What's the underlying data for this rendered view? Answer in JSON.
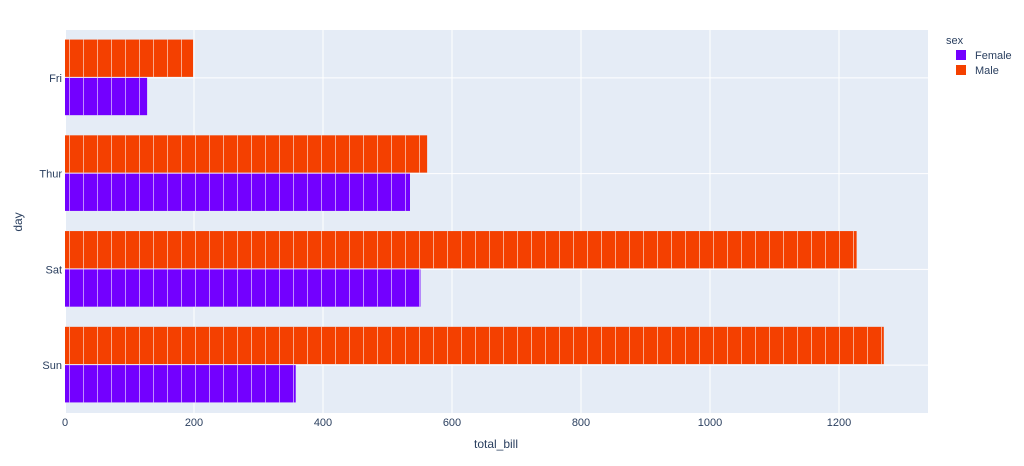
{
  "chart_data": {
    "type": "bar",
    "orientation": "horizontal",
    "barmode": "group",
    "categories": [
      "Fri",
      "Thur",
      "Sat",
      "Sun"
    ],
    "series": [
      {
        "name": "Female",
        "color": "#7300FF",
        "values": [
          127.31,
          534.89,
          551.05,
          357.7
        ]
      },
      {
        "name": "Male",
        "color": "#F44000",
        "values": [
          198.57,
          561.44,
          1227.35,
          1269.46
        ]
      }
    ],
    "xlabel": "total_bill",
    "ylabel": "day",
    "xlim": [
      0,
      1338
    ],
    "xticks": [
      0,
      200,
      400,
      600,
      800,
      1000,
      1200
    ],
    "legend_title": "sex",
    "legend_position": "top-right",
    "grid": true,
    "plot_bg": "#E5ECF6"
  }
}
